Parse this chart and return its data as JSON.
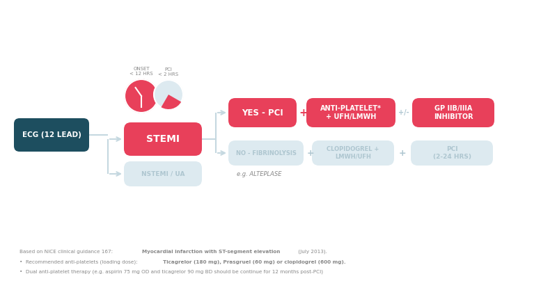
{
  "bg_color": "#ffffff",
  "dark_teal": "#1d4e5f",
  "pink_red": "#e8405a",
  "light_blue_gray": "#ddeaf0",
  "medium_gray_blue": "#aec6d0",
  "text_dark": "#333333",
  "text_gray": "#888888",
  "arrow_color": "#c5d8e0",
  "ecg_label": "ECG (12 LEAD)",
  "stemi_label": "STEMI",
  "nstemi_label": "NSTEMI / UA",
  "onset_label": "ONSET\n< 12 HRS",
  "pci_clock_label": "PCI\n< 2 HRS",
  "yes_pci_label": "YES - PCI",
  "no_fibrinolysis_label": "NO - FIBRINOLYSIS",
  "alteplase_label": "e.g. ALTEPLASE",
  "anti_platelet_label": "ANTI-PLATELET*\n+ UFH/LMWH",
  "gp_inhibitor_label": "GP IIB/IIIA\nINHIBITOR",
  "clopidogrel_label": "CLOPIDOGREL +\nLMWH/UFH",
  "pci_2_24_label": "PCI\n(2-24 HRS)"
}
